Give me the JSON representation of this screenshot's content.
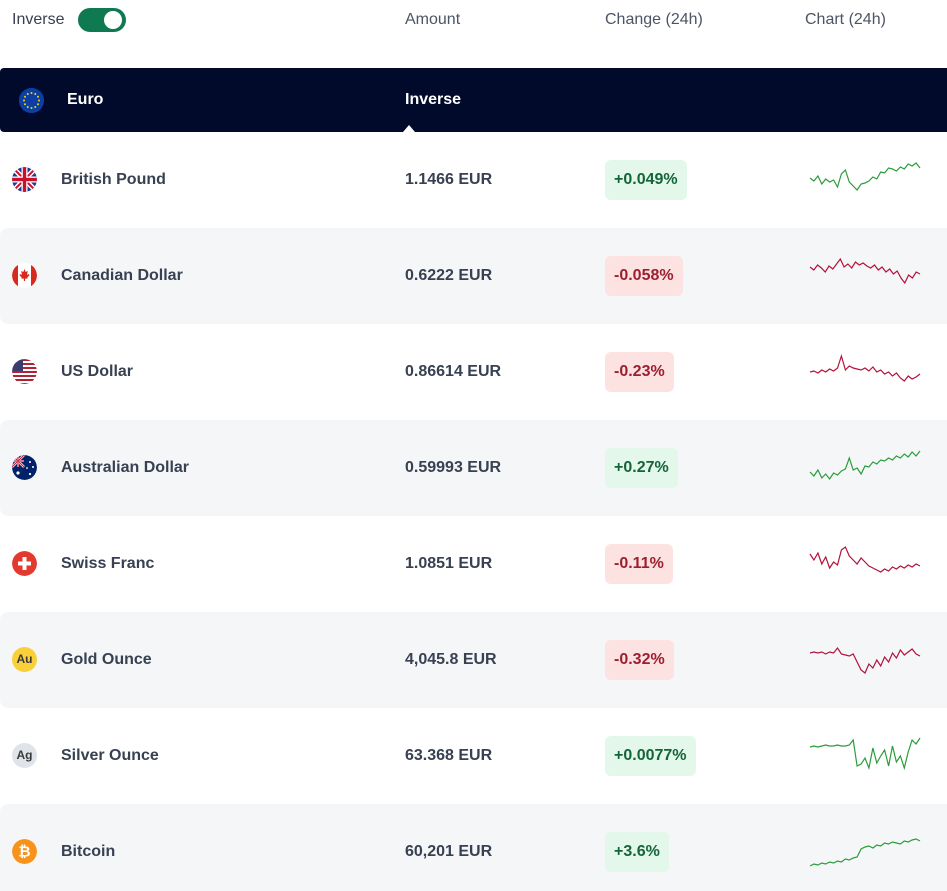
{
  "header": {
    "inverse_label": "Inverse",
    "inverse_on": true,
    "col_amount": "Amount",
    "col_change": "Change (24h)",
    "col_chart": "Chart (24h)"
  },
  "base": {
    "name": "Euro",
    "inverse_label": "Inverse",
    "icon": "eu-flag-icon"
  },
  "colors": {
    "up": "#2a9d3a",
    "down": "#b3123a",
    "header_bg": "#020a2c",
    "toggle": "#0f7a52"
  },
  "rows": [
    {
      "name": "British Pound",
      "amount": "1.1466 EUR",
      "change": "+0.049%",
      "dir": "up",
      "icon": "uk-flag-icon",
      "spark": [
        18,
        21,
        16,
        24,
        19,
        22,
        20,
        27,
        14,
        10,
        22,
        26,
        30,
        24,
        23,
        21,
        17,
        19,
        12,
        13,
        8,
        9,
        11,
        7,
        9,
        4,
        6,
        3,
        8
      ]
    },
    {
      "name": "Canadian Dollar",
      "amount": "0.6222 EUR",
      "change": "-0.058%",
      "dir": "down",
      "icon": "canada-flag-icon",
      "spark": [
        11,
        14,
        9,
        12,
        16,
        10,
        13,
        8,
        3,
        11,
        8,
        12,
        6,
        9,
        7,
        10,
        12,
        9,
        14,
        11,
        16,
        13,
        18,
        15,
        22,
        27,
        19,
        22,
        16,
        18
      ]
    },
    {
      "name": "US Dollar",
      "amount": "0.86614 EUR",
      "change": "-0.23%",
      "dir": "down",
      "icon": "us-flag-icon",
      "spark": [
        20,
        19,
        21,
        18,
        20,
        17,
        19,
        16,
        4,
        18,
        14,
        16,
        17,
        18,
        16,
        19,
        15,
        20,
        18,
        22,
        20,
        24,
        21,
        26,
        29,
        24,
        27,
        25,
        22
      ]
    },
    {
      "name": "Australian Dollar",
      "amount": "0.59993 EUR",
      "change": "+0.27%",
      "dir": "up",
      "icon": "australia-flag-icon",
      "spark": [
        24,
        28,
        22,
        30,
        26,
        31,
        25,
        27,
        23,
        21,
        10,
        22,
        20,
        26,
        18,
        19,
        14,
        16,
        12,
        13,
        10,
        12,
        8,
        10,
        6,
        9,
        4,
        8,
        3
      ]
    },
    {
      "name": "Swiss Franc",
      "amount": "1.0851 EUR",
      "change": "-0.11%",
      "dir": "down",
      "icon": "swiss-flag-icon",
      "spark": [
        10,
        16,
        9,
        20,
        13,
        24,
        18,
        21,
        6,
        3,
        12,
        16,
        20,
        14,
        18,
        22,
        24,
        26,
        28,
        25,
        27,
        23,
        25,
        22,
        24,
        21,
        23,
        20,
        22
      ]
    },
    {
      "name": "Gold Ounce",
      "amount": "4,045.8 EUR",
      "change": "-0.32%",
      "dir": "down",
      "icon": "gold-coin-icon",
      "icon_text": "Au",
      "spark": [
        13,
        12,
        13,
        12,
        14,
        12,
        13,
        8,
        14,
        15,
        16,
        14,
        22,
        30,
        33,
        24,
        28,
        20,
        26,
        17,
        22,
        13,
        18,
        10,
        15,
        12,
        9,
        14,
        16
      ]
    },
    {
      "name": "Silver Ounce",
      "amount": "63.368 EUR",
      "change": "+0.0077%",
      "dir": "up",
      "icon": "silver-coin-icon",
      "icon_text": "Ag",
      "spark": [
        11,
        10,
        11,
        10,
        9,
        10,
        10,
        9,
        10,
        10,
        9,
        4,
        30,
        28,
        22,
        32,
        12,
        27,
        20,
        14,
        30,
        10,
        26,
        20,
        32,
        16,
        4,
        8,
        2
      ]
    },
    {
      "name": "Bitcoin",
      "amount": "60,201 EUR",
      "change": "+3.6%",
      "dir": "up",
      "icon": "bitcoin-icon",
      "spark": [
        34,
        32,
        33,
        31,
        32,
        30,
        31,
        29,
        30,
        27,
        28,
        26,
        25,
        17,
        15,
        14,
        16,
        13,
        14,
        11,
        12,
        10,
        11,
        12,
        9,
        10,
        8,
        7,
        9
      ]
    }
  ]
}
